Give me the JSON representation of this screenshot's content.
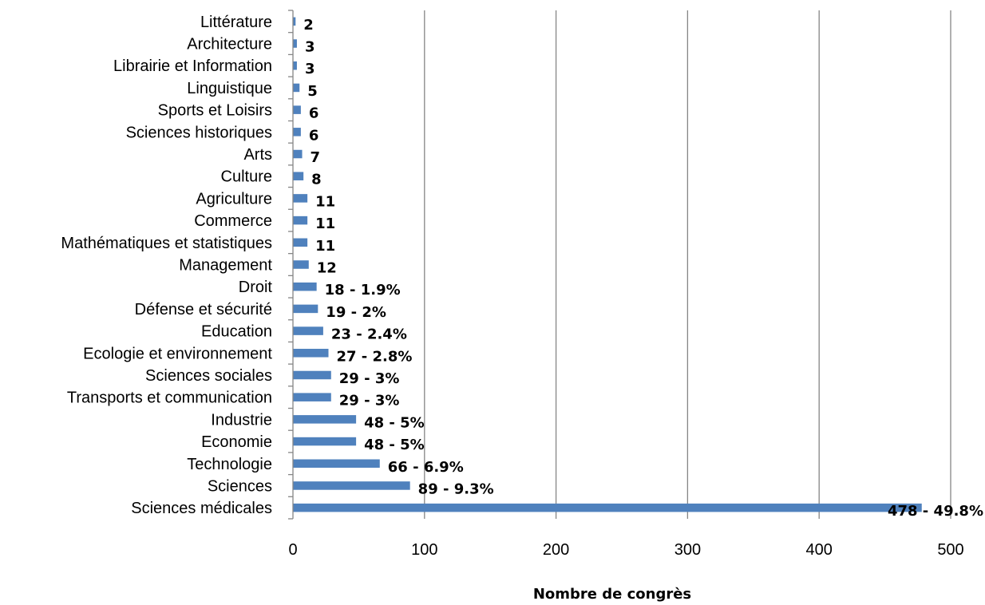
{
  "chart_data": {
    "type": "bar",
    "orientation": "horizontal",
    "categories": [
      "Sciences médicales",
      "Sciences",
      "Technologie",
      "Economie",
      "Industrie",
      "Transports et communication",
      "Sciences sociales",
      "Ecologie et environnement",
      "Education",
      "Défense et sécurité",
      "Droit",
      "Management",
      "Mathématiques et statistiques",
      "Commerce",
      "Agriculture",
      "Culture",
      "Arts",
      "Sciences historiques",
      "Sports et Loisirs",
      "Linguistique",
      "Librairie et Information",
      "Architecture",
      "Littérature"
    ],
    "values": [
      478,
      89,
      66,
      48,
      48,
      29,
      29,
      27,
      23,
      19,
      18,
      12,
      11,
      11,
      11,
      8,
      7,
      6,
      6,
      5,
      3,
      3,
      2
    ],
    "data_labels": [
      "478 - 49.8%",
      "89 - 9.3%",
      "66 - 6.9%",
      "48 - 5%",
      "48 - 5%",
      "29 - 3%",
      "29 - 3%",
      "27 - 2.8%",
      "23 - 2.4%",
      "19 - 2%",
      "18 - 1.9%",
      "12",
      "11",
      "11",
      "11",
      "8",
      "7",
      "6",
      "6",
      "5",
      "3",
      "3",
      "2"
    ],
    "title": "",
    "xlabel": "Nombre de congrès",
    "ylabel": "",
    "xlim": [
      0,
      500
    ],
    "xticks": [
      0,
      100,
      200,
      300,
      400,
      500
    ],
    "grid": "vertical",
    "legend": "none",
    "bar_color": "#4F81BD",
    "grid_color": "#868686"
  }
}
